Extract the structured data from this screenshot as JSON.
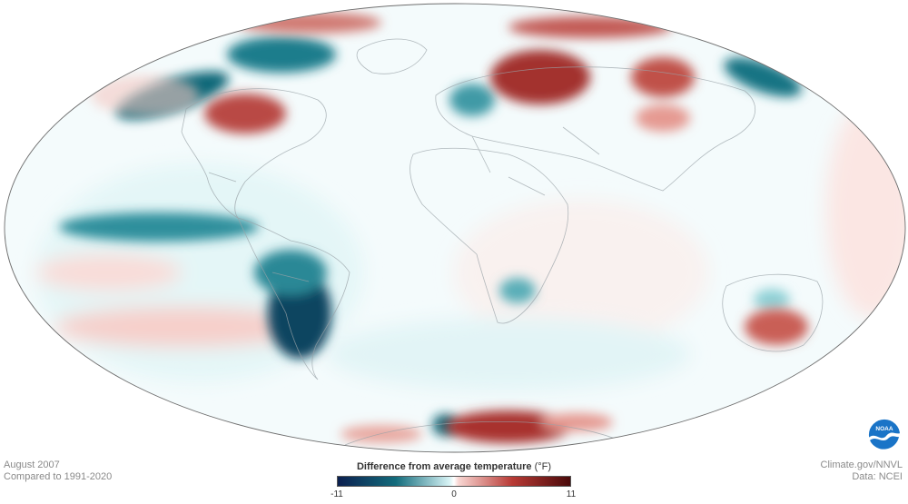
{
  "caption": {
    "date": "August 2007",
    "baseline": "Compared to 1991-2020",
    "source_site": "Climate.gov/NNVL",
    "data_source": "Data: NCEI"
  },
  "legend": {
    "title": "Difference from average temperature",
    "unit": "(°F)",
    "min": "-11",
    "mid": "0",
    "max": "11",
    "colors": {
      "cold_extreme": "#0b1f4f",
      "cold": "#136c7c",
      "neutral": "#ffffff",
      "warm": "#b83a35",
      "warm_extreme": "#4a0a0a"
    }
  },
  "logo": {
    "text": "NOAA"
  },
  "map": {
    "projection": "Mollweide",
    "variable": "temperature anomaly"
  }
}
